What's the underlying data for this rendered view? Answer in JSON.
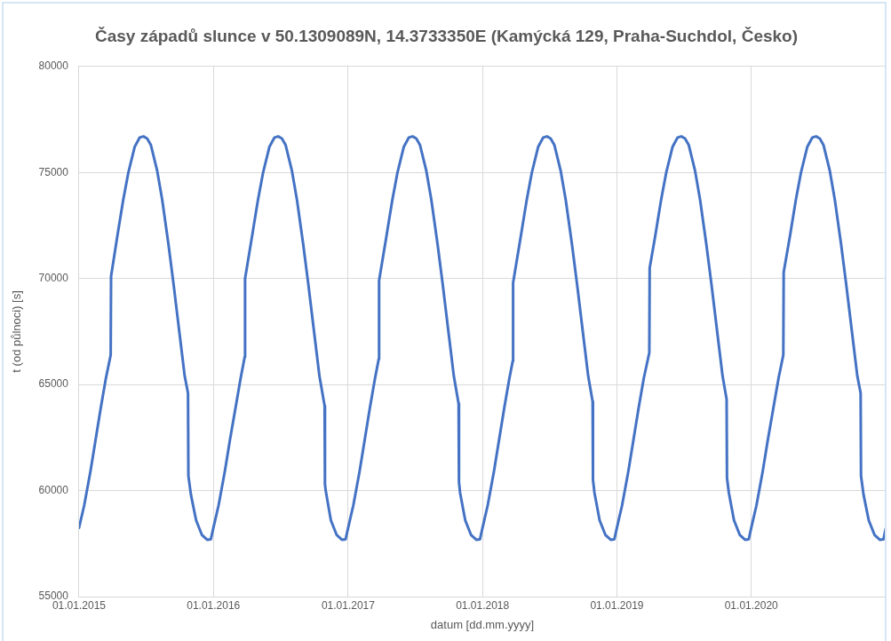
{
  "chart_data": {
    "type": "line",
    "title": "Časy západů slunce v 50.1309089N, 14.3733350E (Kamýcká 129, Praha-Suchdol, Česko)",
    "xlabel": "datum [dd.mm.yyyy]",
    "ylabel": "t (od půlnoci) [s]",
    "x": [
      "2015-01-01",
      "2015-01-15",
      "2015-02-01",
      "2015-02-15",
      "2015-03-01",
      "2015-03-15",
      "2015-03-28",
      "2015-03-29",
      "2015-04-15",
      "2015-05-01",
      "2015-05-15",
      "2015-06-01",
      "2015-06-15",
      "2015-06-25",
      "2015-07-05",
      "2015-07-15",
      "2015-08-01",
      "2015-08-15",
      "2015-09-01",
      "2015-09-15",
      "2015-10-01",
      "2015-10-15",
      "2015-10-24",
      "2015-10-25",
      "2015-11-01",
      "2015-11-15",
      "2015-12-01",
      "2015-12-15",
      "2015-12-25",
      "2016-01-01",
      "2016-01-15",
      "2016-02-01",
      "2016-02-15",
      "2016-03-01",
      "2016-03-15",
      "2016-03-26",
      "2016-03-27",
      "2016-04-15",
      "2016-05-01",
      "2016-05-15",
      "2016-06-01",
      "2016-06-15",
      "2016-06-25",
      "2016-07-05",
      "2016-07-15",
      "2016-08-01",
      "2016-08-15",
      "2016-09-01",
      "2016-09-15",
      "2016-10-01",
      "2016-10-15",
      "2016-10-29",
      "2016-10-30",
      "2016-11-01",
      "2016-11-15",
      "2016-12-01",
      "2016-12-15",
      "2016-12-25",
      "2017-01-01",
      "2017-01-15",
      "2017-02-01",
      "2017-02-15",
      "2017-03-01",
      "2017-03-15",
      "2017-03-25",
      "2017-03-26",
      "2017-04-15",
      "2017-05-01",
      "2017-05-15",
      "2017-06-01",
      "2017-06-15",
      "2017-06-25",
      "2017-07-05",
      "2017-07-15",
      "2017-08-01",
      "2017-08-15",
      "2017-09-01",
      "2017-09-15",
      "2017-10-01",
      "2017-10-15",
      "2017-10-28",
      "2017-10-29",
      "2017-11-01",
      "2017-11-15",
      "2017-12-01",
      "2017-12-15",
      "2017-12-25",
      "2018-01-01",
      "2018-01-15",
      "2018-02-01",
      "2018-02-15",
      "2018-03-01",
      "2018-03-15",
      "2018-03-24",
      "2018-03-25",
      "2018-04-15",
      "2018-05-01",
      "2018-05-15",
      "2018-06-01",
      "2018-06-15",
      "2018-06-25",
      "2018-07-05",
      "2018-07-15",
      "2018-08-01",
      "2018-08-15",
      "2018-09-01",
      "2018-09-15",
      "2018-10-01",
      "2018-10-15",
      "2018-10-27",
      "2018-10-28",
      "2018-11-01",
      "2018-11-15",
      "2018-12-01",
      "2018-12-15",
      "2018-12-25",
      "2019-01-01",
      "2019-01-15",
      "2019-02-01",
      "2019-02-15",
      "2019-03-01",
      "2019-03-15",
      "2019-03-30",
      "2019-03-31",
      "2019-04-15",
      "2019-05-01",
      "2019-05-15",
      "2019-06-01",
      "2019-06-15",
      "2019-06-25",
      "2019-07-05",
      "2019-07-15",
      "2019-08-01",
      "2019-08-15",
      "2019-09-01",
      "2019-09-15",
      "2019-10-01",
      "2019-10-15",
      "2019-10-26",
      "2019-10-27",
      "2019-11-01",
      "2019-11-15",
      "2019-12-01",
      "2019-12-15",
      "2019-12-25",
      "2020-01-01",
      "2020-01-15",
      "2020-02-01",
      "2020-02-15",
      "2020-03-01",
      "2020-03-15",
      "2020-03-28",
      "2020-03-29",
      "2020-04-15",
      "2020-05-01",
      "2020-05-15",
      "2020-06-01",
      "2020-06-15",
      "2020-06-25",
      "2020-07-05",
      "2020-07-15",
      "2020-08-01",
      "2020-08-15",
      "2020-09-01",
      "2020-09-15",
      "2020-10-01",
      "2020-10-15",
      "2020-10-24",
      "2020-10-25",
      "2020-11-01",
      "2020-11-15",
      "2020-12-01",
      "2020-12-15",
      "2020-12-25",
      "2020-12-31"
    ],
    "series": [
      {
        "color": "#4472c4",
        "values": [
          58250,
          59300,
          60900,
          62400,
          63900,
          65300,
          66400,
          70100,
          72000,
          73700,
          75000,
          76200,
          76650,
          76700,
          76600,
          76300,
          75100,
          73700,
          71600,
          69700,
          67400,
          65400,
          64600,
          60700,
          59800,
          58600,
          57900,
          57680,
          57700,
          58250,
          59300,
          60900,
          62400,
          63900,
          65300,
          66300,
          70000,
          72000,
          73700,
          75000,
          76200,
          76650,
          76700,
          76600,
          76300,
          75100,
          73700,
          71600,
          69700,
          67400,
          65400,
          64000,
          60300,
          60000,
          58600,
          57900,
          57680,
          57700,
          58250,
          59300,
          60900,
          62400,
          63900,
          65300,
          66200,
          69900,
          72000,
          73700,
          75000,
          76200,
          76650,
          76700,
          76600,
          76300,
          75100,
          73700,
          71600,
          69700,
          67400,
          65400,
          64100,
          60400,
          59900,
          58600,
          57900,
          57680,
          57700,
          58250,
          59300,
          60900,
          62400,
          63900,
          65300,
          66100,
          69800,
          72000,
          73700,
          75000,
          76200,
          76650,
          76700,
          76600,
          76300,
          75100,
          73700,
          71600,
          69700,
          67400,
          65400,
          64200,
          60500,
          59900,
          58600,
          57900,
          57680,
          57700,
          58250,
          59300,
          60900,
          62400,
          63900,
          65300,
          66500,
          70500,
          72000,
          73700,
          75000,
          76200,
          76650,
          76700,
          76600,
          76300,
          75100,
          73700,
          71600,
          69700,
          67400,
          65400,
          64300,
          60600,
          59900,
          58600,
          57900,
          57680,
          57700,
          58250,
          59300,
          60900,
          62400,
          63900,
          65300,
          66400,
          70300,
          72000,
          73700,
          75000,
          76200,
          76650,
          76700,
          76600,
          76300,
          75100,
          73700,
          71600,
          69700,
          67400,
          65400,
          64600,
          60700,
          59800,
          58600,
          57900,
          57680,
          57700,
          58200
        ]
      }
    ],
    "xlim": [
      "2015-01-01",
      "2020-12-31"
    ],
    "xticks": [
      {
        "value": "2015-01-01",
        "label": "01.01.2015"
      },
      {
        "value": "2016-01-01",
        "label": "01.01.2016"
      },
      {
        "value": "2017-01-01",
        "label": "01.01.2017"
      },
      {
        "value": "2018-01-01",
        "label": "01.01.2018"
      },
      {
        "value": "2019-01-01",
        "label": "01.01.2019"
      },
      {
        "value": "2020-01-01",
        "label": "01.01.2020"
      }
    ],
    "ylim": [
      55000,
      80000
    ],
    "yticks": [
      55000,
      60000,
      65000,
      70000,
      75000,
      80000
    ],
    "grid": true,
    "legend": false,
    "marker": "none",
    "line_style": "solid"
  }
}
